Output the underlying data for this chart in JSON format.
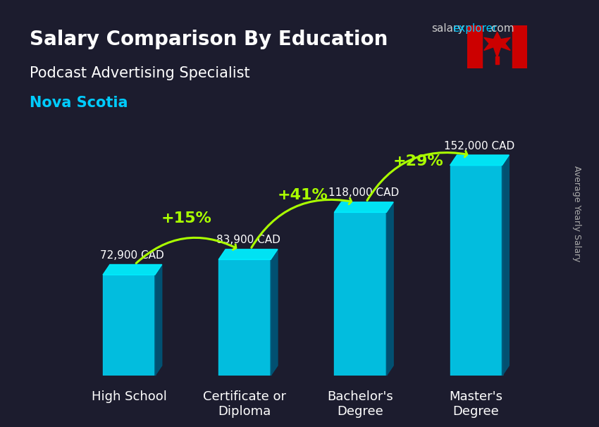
{
  "title_salary": "Salary Comparison By Education",
  "subtitle": "Podcast Advertising Specialist",
  "location": "Nova Scotia",
  "watermark": "salaryexplorer.com",
  "ylabel": "Average Yearly Salary",
  "categories": [
    "High School",
    "Certificate or\nDiploma",
    "Bachelor's\nDegree",
    "Master's\nDegree"
  ],
  "values": [
    72900,
    83900,
    118000,
    152000
  ],
  "value_labels": [
    "72,900 CAD",
    "83,900 CAD",
    "118,000 CAD",
    "152,000 CAD"
  ],
  "pct_changes": [
    "+15%",
    "+41%",
    "+29%"
  ],
  "bar_color_top": "#00d4ff",
  "bar_color_mid": "#00aadd",
  "bar_color_bot": "#0077bb",
  "bar_color_face": "#00ccee",
  "bg_color": "#1a1a2e",
  "title_color": "#ffffff",
  "subtitle_color": "#ffffff",
  "location_color": "#00ccff",
  "value_label_color": "#ffffff",
  "pct_color": "#aaff00",
  "arrow_color": "#aaff00",
  "watermark_salary_color": "#cccccc",
  "watermark_explorer_color": "#00ccff",
  "figsize": [
    8.5,
    6.06
  ],
  "dpi": 100,
  "ylim": [
    0,
    185000
  ]
}
